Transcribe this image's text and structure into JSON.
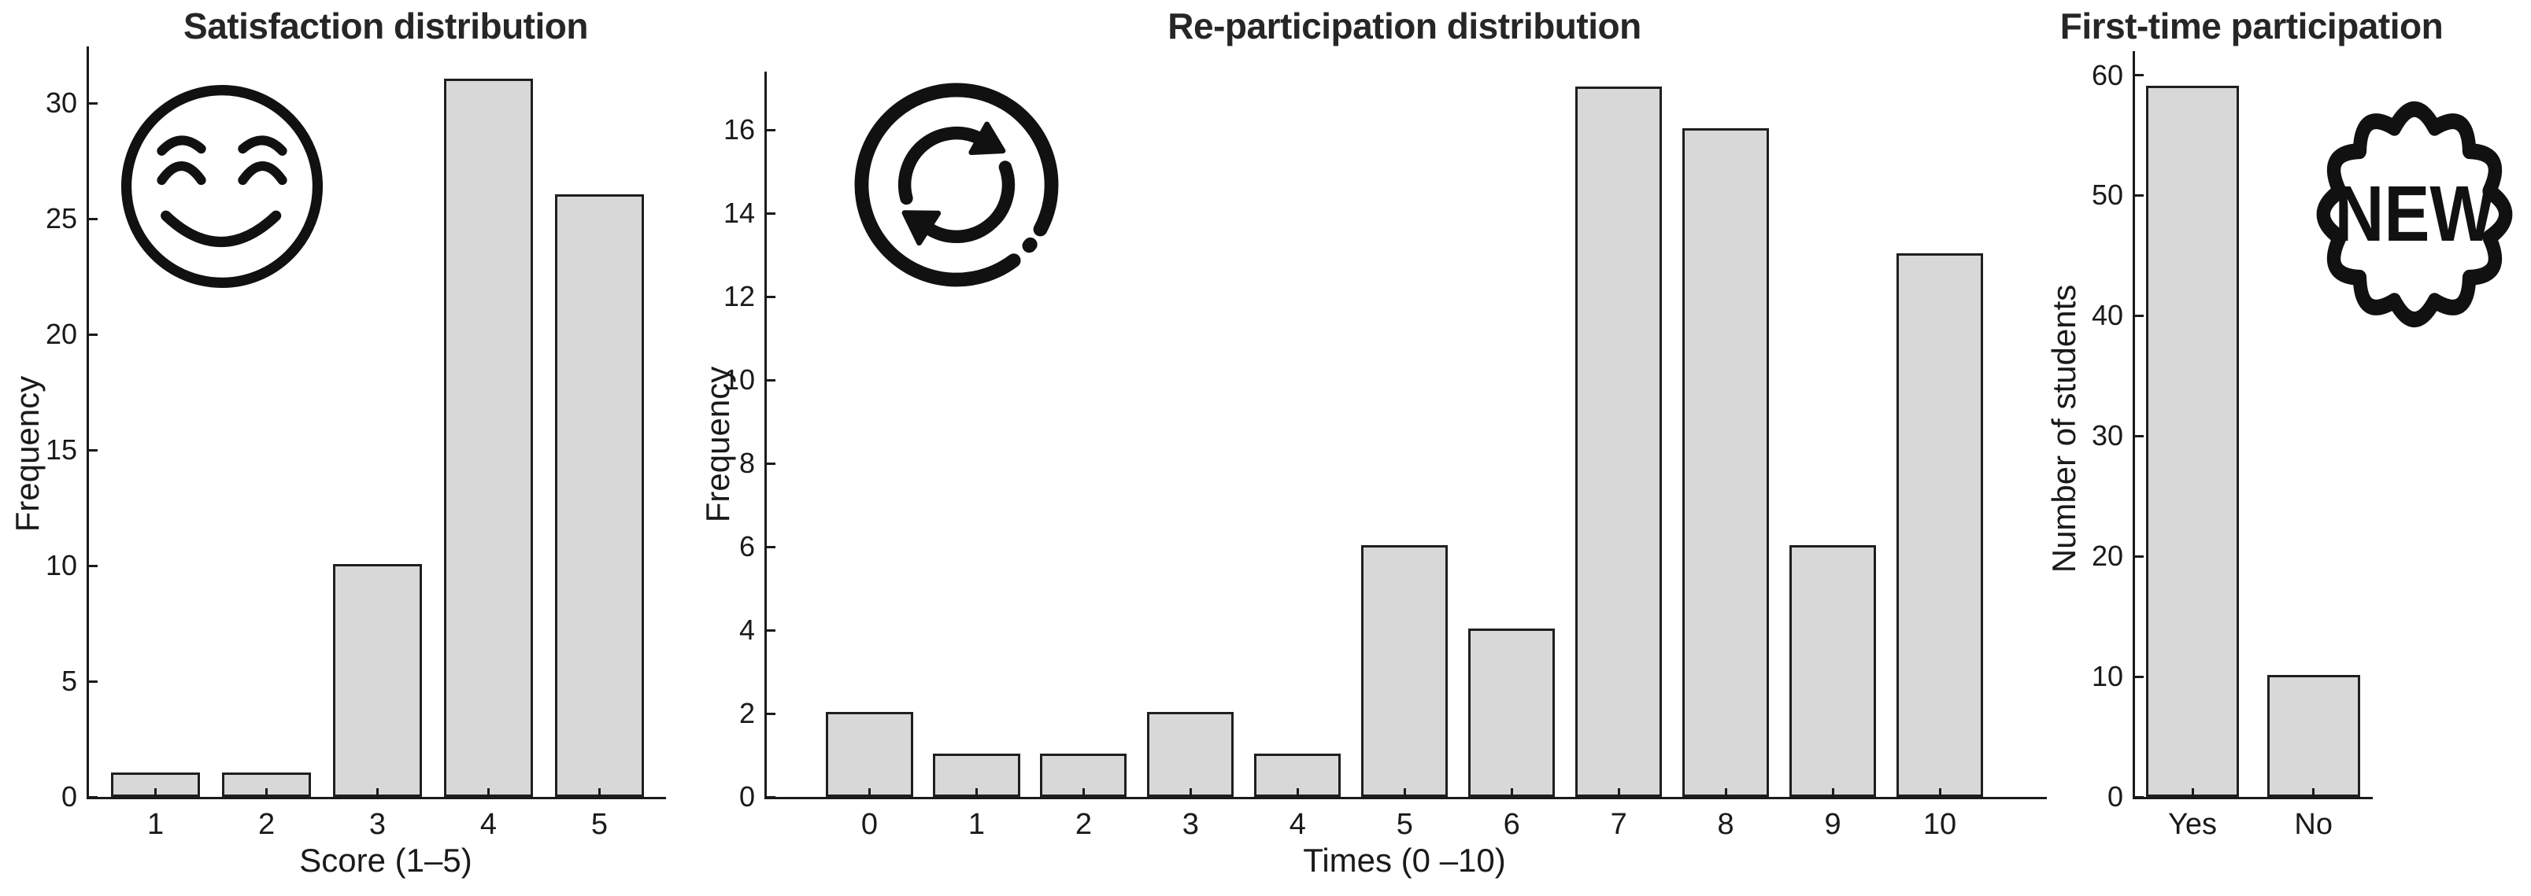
{
  "figure": {
    "background_color": "#ffffff",
    "bar_fill_color": "#d8d8d8",
    "bar_edge_color": "#1f1f1f",
    "axis_color": "#1a1a1a",
    "title_color": "#262626"
  },
  "chart_data": [
    {
      "type": "bar",
      "title": "Satisfaction distribution",
      "xlabel": "Score (1–5)",
      "ylabel": "Frequency",
      "categories": [
        "1",
        "2",
        "3",
        "4",
        "5"
      ],
      "values": [
        1,
        1,
        10,
        31,
        26
      ],
      "x_positions": [
        1,
        2,
        3,
        4,
        5
      ],
      "xlim": [
        0.4,
        5.6
      ],
      "ylim": [
        0,
        32.45
      ],
      "yticks": [
        0,
        5,
        10,
        15,
        20,
        25,
        30
      ],
      "ytick_labels": [
        "0",
        "5",
        "10",
        "15",
        "20",
        "25",
        "30"
      ],
      "bar_width": 0.8,
      "grid": false,
      "legend": "none",
      "icon": "smiling-face-icon"
    },
    {
      "type": "bar",
      "title": "Re-participation distribution",
      "xlabel": "Times (0 –10)",
      "ylabel": "Frequency",
      "categories": [
        "0",
        "1",
        "2",
        "3",
        "4",
        "5",
        "6",
        "7",
        "8",
        "9",
        "10"
      ],
      "values": [
        2,
        1,
        1,
        2,
        1,
        6,
        4,
        17,
        16,
        6,
        13
      ],
      "x_positions": [
        0,
        1,
        2,
        3,
        4,
        5,
        6,
        7,
        8,
        9,
        10
      ],
      "xlim": [
        -0.96,
        11.0
      ],
      "ylim": [
        0,
        17.4
      ],
      "yticks": [
        0,
        2,
        4,
        6,
        8,
        10,
        12,
        14,
        16
      ],
      "ytick_labels": [
        "0",
        "2",
        "4",
        "6",
        "8",
        "10",
        "12",
        "14",
        "16"
      ],
      "bar_width": 0.81,
      "grid": false,
      "legend": "none",
      "icon": "cycle-arrows-icon"
    },
    {
      "type": "bar",
      "title": "First-time participation",
      "xlabel": "",
      "ylabel": "Number of students",
      "categories": [
        "Yes",
        "No"
      ],
      "values": [
        59,
        10
      ],
      "x_positions": [
        0,
        1
      ],
      "xlim": [
        -0.475,
        1.49
      ],
      "ylim": [
        0,
        62
      ],
      "yticks": [
        0,
        10,
        20,
        30,
        40,
        50,
        60
      ],
      "ytick_labels": [
        "0",
        "10",
        "20",
        "30",
        "40",
        "50",
        "60"
      ],
      "bar_width": 0.77,
      "grid": false,
      "legend": "none",
      "icon": "new-badge-icon",
      "badge_text": "NEW"
    }
  ]
}
